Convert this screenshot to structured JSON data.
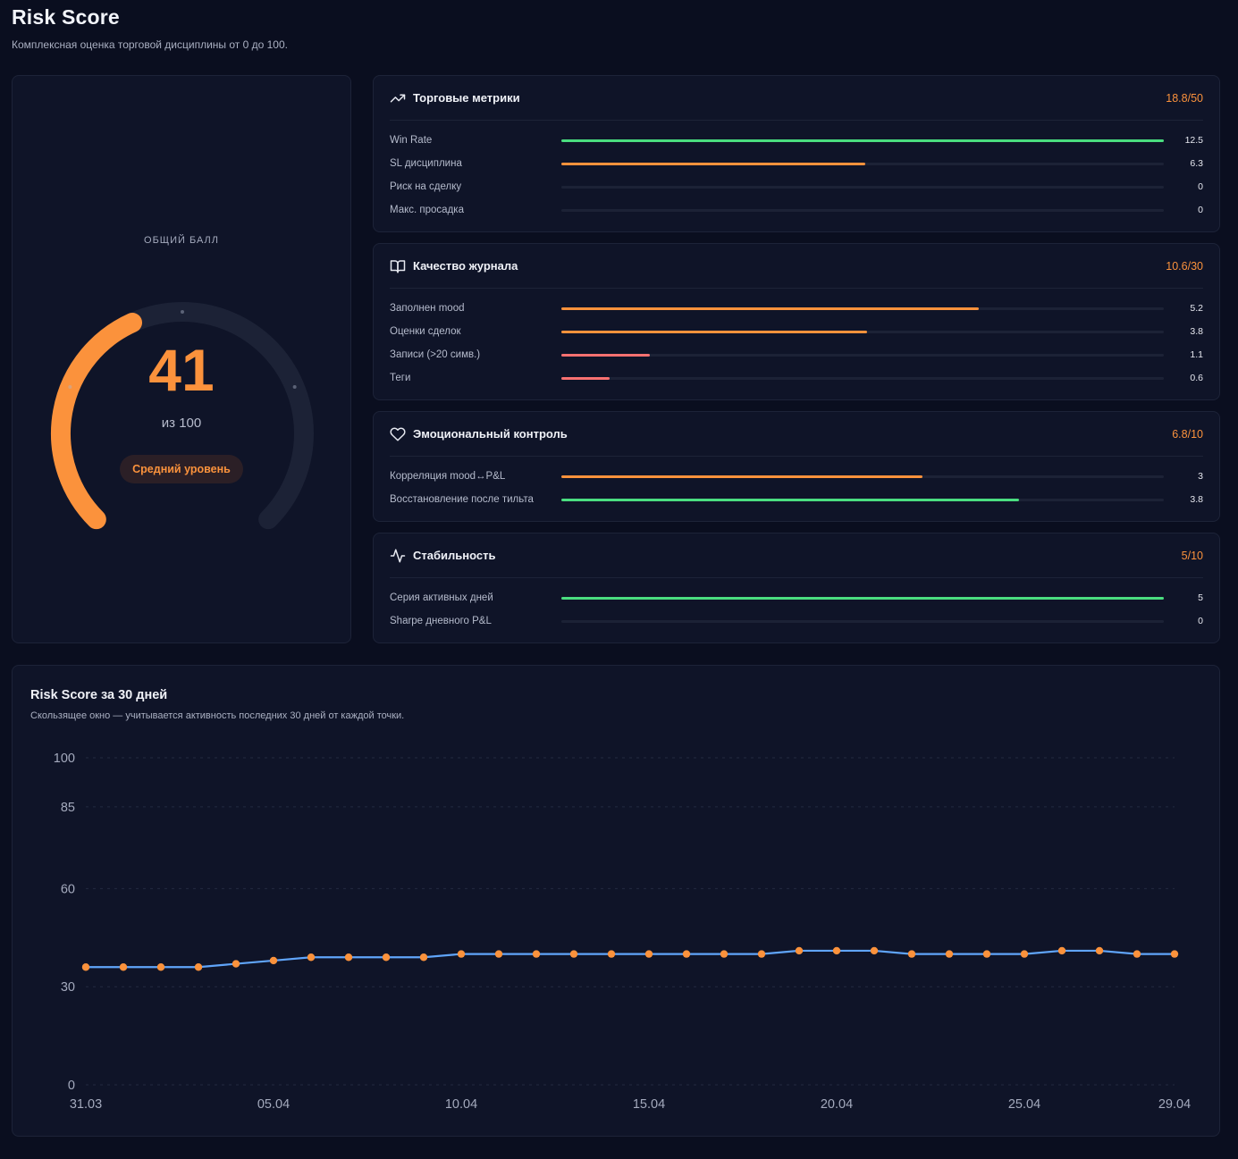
{
  "header": {
    "title": "Risk Score",
    "subtitle": "Комплексная оценка торговой дисциплины от 0 до 100."
  },
  "gauge": {
    "label": "ОБЩИЙ БАЛЛ",
    "value": "41",
    "score": 41,
    "max": 100,
    "max_label": "из 100",
    "level": "Средний уровень",
    "color": "#fb923c"
  },
  "colors": {
    "green": "#4ade80",
    "orange": "#fb923c",
    "red": "#f87171",
    "track": "#1c2236",
    "line": "#60a5fa",
    "point": "#fb923c"
  },
  "sections": [
    {
      "icon": "trending-up-icon",
      "title": "Торговые метрики",
      "score": "18.8/50",
      "rows": [
        {
          "label": "Win Rate",
          "value": "12.5",
          "fraction": 1.0,
          "color": "green"
        },
        {
          "label": "SL дисциплина",
          "value": "6.3",
          "fraction": 0.504,
          "color": "orange"
        },
        {
          "label": "Риск на сделку",
          "value": "0",
          "fraction": 0,
          "color": "orange"
        },
        {
          "label": "Макс. просадка",
          "value": "0",
          "fraction": 0,
          "color": "orange"
        }
      ]
    },
    {
      "icon": "book-open-icon",
      "title": "Качество журнала",
      "score": "10.6/30",
      "rows": [
        {
          "label": "Заполнен mood",
          "value": "5.2",
          "fraction": 0.693,
          "color": "orange"
        },
        {
          "label": "Оценки сделок",
          "value": "3.8",
          "fraction": 0.507,
          "color": "orange"
        },
        {
          "label": "Записи (>20 симв.)",
          "value": "1.1",
          "fraction": 0.147,
          "color": "red"
        },
        {
          "label": "Теги",
          "value": "0.6",
          "fraction": 0.08,
          "color": "red"
        }
      ]
    },
    {
      "icon": "heart-icon",
      "title": "Эмоциональный контроль",
      "score": "6.8/10",
      "rows": [
        {
          "label": "Корреляция mood↔P&L",
          "value": "3",
          "fraction": 0.6,
          "color": "orange"
        },
        {
          "label": "Восстановление после тильта",
          "value": "3.8",
          "fraction": 0.76,
          "color": "green"
        }
      ]
    },
    {
      "icon": "activity-icon",
      "title": "Стабильность",
      "score": "5/10",
      "rows": [
        {
          "label": "Серия активных дней",
          "value": "5",
          "fraction": 1.0,
          "color": "green"
        },
        {
          "label": "Sharpe дневного P&L",
          "value": "0",
          "fraction": 0,
          "color": "green"
        }
      ]
    }
  ],
  "history": {
    "title": "Risk Score за 30 дней",
    "subtitle": "Скользящее окно — учитывается активность последних 30 дней от каждой точки."
  },
  "chart_data": {
    "type": "line",
    "x": [
      "31.03",
      "01.04",
      "02.04",
      "03.04",
      "04.04",
      "05.04",
      "06.04",
      "07.04",
      "08.04",
      "09.04",
      "10.04",
      "11.04",
      "12.04",
      "13.04",
      "14.04",
      "15.04",
      "16.04",
      "17.04",
      "18.04",
      "19.04",
      "20.04",
      "21.04",
      "22.04",
      "23.04",
      "24.04",
      "25.04",
      "26.04",
      "27.04",
      "28.04",
      "29.04"
    ],
    "x_tick_labels": [
      "31.03",
      "05.04",
      "10.04",
      "15.04",
      "20.04",
      "25.04",
      "29.04"
    ],
    "y_tick_labels": [
      "0",
      "30",
      "60",
      "85",
      "100"
    ],
    "series": [
      {
        "values": [
          36,
          36,
          36,
          36,
          37,
          38,
          39,
          39,
          39,
          39,
          40,
          40,
          40,
          40,
          40,
          40,
          40,
          40,
          40,
          41,
          41,
          41,
          40,
          40,
          40,
          40,
          41,
          41,
          40,
          40
        ]
      }
    ],
    "ylim": [
      0,
      100
    ],
    "grid": true,
    "line_color": "#60a5fa",
    "point_color": "#fb923c"
  }
}
